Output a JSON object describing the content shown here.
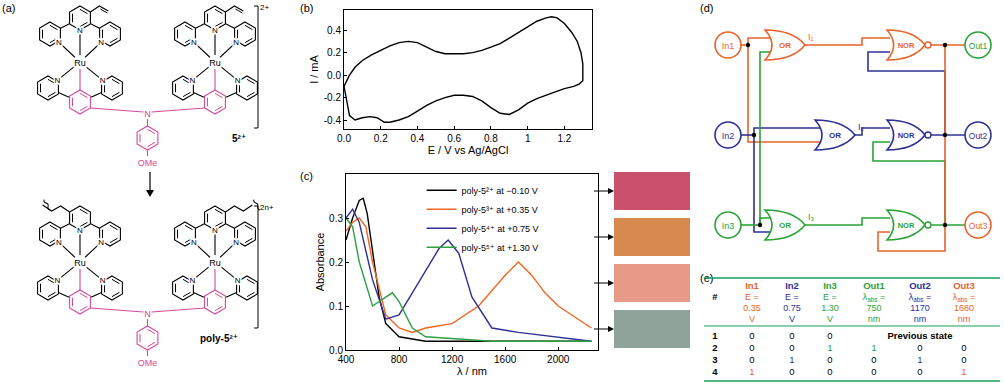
{
  "panel_labels": {
    "a": "(a)",
    "b": "(b)",
    "c": "(c)",
    "d": "(d)",
    "e": "(e)"
  },
  "structures": {
    "metal": "Ru",
    "donor": "N",
    "bridge_atom": "N",
    "substituent": "OMe",
    "ligand_color": "#d6489a",
    "monomer": {
      "label": "5²⁺",
      "charge": "2+"
    },
    "polymer": {
      "label": "poly-5²⁺",
      "charge": "2n+"
    }
  },
  "chart_data": [
    {
      "type": "line",
      "x_label": "E / V vs Ag/AgCl",
      "y_label": "I / mA",
      "xlim": [
        0,
        1.35
      ],
      "ylim": [
        -0.48,
        0.58
      ],
      "xticks": [
        {
          "value": 0,
          "label": "0.0"
        },
        0.2,
        0.4,
        0.6,
        0.8,
        1,
        1.2
      ],
      "yticks": [
        -0.4,
        -0.2,
        {
          "value": 0,
          "label": "0.0"
        },
        0.2,
        0.4
      ],
      "grid": false,
      "series": [
        {
          "color": "#000000",
          "x": [
            0.0,
            0.03,
            0.06,
            0.1,
            0.15,
            0.2,
            0.25,
            0.3,
            0.35,
            0.4,
            0.45,
            0.5,
            0.55,
            0.6,
            0.65,
            0.7,
            0.75,
            0.8,
            0.85,
            0.9,
            0.95,
            1.0,
            1.05,
            1.1,
            1.13,
            1.16,
            1.2,
            1.24,
            1.27,
            1.29,
            1.3,
            1.3,
            1.28,
            1.25,
            1.2,
            1.15,
            1.1,
            1.05,
            1.0,
            0.95,
            0.9,
            0.85,
            0.8,
            0.75,
            0.7,
            0.65,
            0.6,
            0.55,
            0.5,
            0.45,
            0.4,
            0.35,
            0.3,
            0.25,
            0.22,
            0.18,
            0.14,
            0.1,
            0.06,
            0.03,
            0.0
          ],
          "values": [
            -0.1,
            0.0,
            0.07,
            0.13,
            0.18,
            0.22,
            0.26,
            0.29,
            0.3,
            0.29,
            0.25,
            0.21,
            0.19,
            0.19,
            0.19,
            0.2,
            0.22,
            0.25,
            0.28,
            0.33,
            0.38,
            0.43,
            0.48,
            0.51,
            0.52,
            0.51,
            0.46,
            0.38,
            0.3,
            0.2,
            0.1,
            -0.05,
            -0.08,
            -0.1,
            -0.12,
            -0.15,
            -0.18,
            -0.21,
            -0.25,
            -0.31,
            -0.35,
            -0.34,
            -0.29,
            -0.23,
            -0.19,
            -0.18,
            -0.18,
            -0.2,
            -0.23,
            -0.27,
            -0.32,
            -0.37,
            -0.4,
            -0.42,
            -0.42,
            -0.38,
            -0.37,
            -0.38,
            -0.4,
            -0.36,
            -0.1
          ]
        }
      ]
    },
    {
      "type": "line",
      "x_label": "λ / nm",
      "y_label": "Absorbance",
      "xlim": [
        400,
        2300
      ],
      "ylim": [
        0,
        0.4
      ],
      "xticks": [
        400,
        800,
        1200,
        1600,
        2000
      ],
      "yticks": [
        {
          "value": 0,
          "label": "0.0"
        },
        0.1,
        0.2,
        0.3
      ],
      "grid": false,
      "legend": "top",
      "series": [
        {
          "name": "poly-5²⁺ at −0.10 V",
          "color": "#000000",
          "x": [
            400,
            450,
            500,
            530,
            560,
            600,
            650,
            700,
            800,
            1000,
            1500,
            2000,
            2250
          ],
          "values": [
            0.25,
            0.3,
            0.34,
            0.345,
            0.31,
            0.22,
            0.12,
            0.06,
            0.03,
            0.02,
            0.02,
            0.02,
            0.02
          ]
        },
        {
          "name": "poly-5³⁺ at +0.35 V",
          "color": "#f26522",
          "x": [
            400,
            450,
            500,
            550,
            600,
            700,
            800,
            900,
            1000,
            1200,
            1400,
            1600,
            1700,
            1800,
            1900,
            2000,
            2250
          ],
          "values": [
            0.27,
            0.29,
            0.3,
            0.28,
            0.2,
            0.08,
            0.05,
            0.04,
            0.05,
            0.06,
            0.1,
            0.17,
            0.2,
            0.17,
            0.13,
            0.1,
            0.05
          ]
        },
        {
          "name": "poly-5⁴⁺ at +0.75 V",
          "color": "#2e3192",
          "x": [
            400,
            450,
            500,
            600,
            700,
            800,
            900,
            1000,
            1100,
            1170,
            1250,
            1350,
            1500,
            1700,
            2000,
            2250
          ],
          "values": [
            0.3,
            0.32,
            0.29,
            0.16,
            0.07,
            0.08,
            0.13,
            0.18,
            0.23,
            0.25,
            0.22,
            0.12,
            0.05,
            0.04,
            0.03,
            0.02
          ]
        },
        {
          "name": "poly-5⁵⁺ at +1.30 V",
          "color": "#2ea043",
          "x": [
            400,
            450,
            500,
            600,
            700,
            750,
            800,
            900,
            1000,
            1500,
            2000,
            2250
          ],
          "values": [
            0.3,
            0.28,
            0.2,
            0.1,
            0.12,
            0.13,
            0.11,
            0.05,
            0.03,
            0.02,
            0.02,
            0.02
          ]
        }
      ]
    }
  ],
  "film_colors": {
    "colors": [
      "#c9516e",
      "#d68a4f",
      "#e79a86",
      "#8fa39a"
    ]
  },
  "circuit": {
    "inputs": [
      {
        "label": "In1",
        "color": "#e8632b"
      },
      {
        "label": "In2",
        "color": "#2e3192"
      },
      {
        "label": "In3",
        "color": "#2aa336"
      }
    ],
    "or_gates": [
      {
        "label": "OR",
        "signal": "I₁",
        "color": "#e8632b"
      },
      {
        "label": "OR",
        "signal": "I₂",
        "color": "#2e3192"
      },
      {
        "label": "OR",
        "signal": "I₃",
        "color": "#2aa336"
      }
    ],
    "nor_gates": [
      {
        "label": "NOR",
        "color": "#e8632b"
      },
      {
        "label": "NOR",
        "color": "#2e3192"
      },
      {
        "label": "NOR",
        "color": "#2aa336"
      }
    ],
    "outputs": [
      {
        "label": "Out1",
        "color": "#2aa336"
      },
      {
        "label": "Out2",
        "color": "#2e3192"
      },
      {
        "label": "Out3",
        "color": "#e8632b"
      }
    ]
  },
  "table": {
    "rule_color": "#16a05a",
    "header": [
      {
        "name": "#"
      },
      {
        "name": "In1",
        "quantity": "E =",
        "value": "0.35",
        "unit": "V",
        "color": "#e8632b"
      },
      {
        "name": "In2",
        "quantity": "E =",
        "value": "0.75",
        "unit": "V",
        "color": "#2e3192"
      },
      {
        "name": "In3",
        "quantity": "E =",
        "value": "1.30",
        "unit": "V",
        "color": "#2aa336"
      },
      {
        "name": "Out1",
        "quantity": "λ",
        "quantity_sub": "abs",
        "quantity_after": " =",
        "value": "750",
        "unit": "nm",
        "color": "#2aa336"
      },
      {
        "name": "Out2",
        "quantity": "λ",
        "quantity_sub": "abs",
        "quantity_after": " =",
        "value": "1170",
        "unit": "nm",
        "color": "#2e3192"
      },
      {
        "name": "Out3",
        "quantity": "λ",
        "quantity_sub": "abs",
        "quantity_after": " =",
        "value": "1680",
        "unit": "nm",
        "color": "#e8632b"
      }
    ],
    "rows": [
      {
        "cells": [
          {
            "text": "1"
          },
          {
            "text": "0"
          },
          {
            "text": "0"
          },
          {
            "text": "0"
          }
        ],
        "span_text": "Previous state"
      },
      {
        "cells": [
          {
            "text": "2"
          },
          {
            "text": "0"
          },
          {
            "text": "0"
          },
          {
            "text": "1",
            "color": "#2aa336"
          },
          {
            "text": "1",
            "color": "#2aa336"
          },
          {
            "text": "0"
          },
          {
            "text": "0"
          }
        ]
      },
      {
        "cells": [
          {
            "text": "3"
          },
          {
            "text": "0"
          },
          {
            "text": "1",
            "color": "#2e3192"
          },
          {
            "text": "0"
          },
          {
            "text": "0"
          },
          {
            "text": "1",
            "color": "#2e3192"
          },
          {
            "text": "0"
          }
        ]
      },
      {
        "cells": [
          {
            "text": "4"
          },
          {
            "text": "1",
            "color": "#e8632b"
          },
          {
            "text": "0"
          },
          {
            "text": "0"
          },
          {
            "text": "0"
          },
          {
            "text": "0"
          },
          {
            "text": "1",
            "color": "#e8632b"
          }
        ]
      }
    ]
  }
}
